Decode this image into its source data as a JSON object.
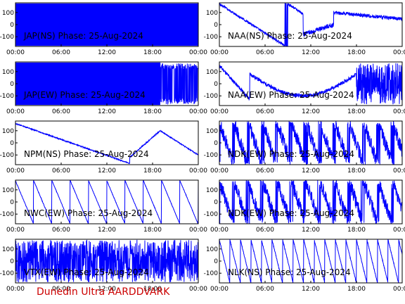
{
  "footer": {
    "text": "Dunedin Ultra AARDDVARK",
    "color": "#cc0000"
  },
  "colors": {
    "trace": "#0000ff",
    "axes": "#000000",
    "background": "#ffffff"
  },
  "chart_data": [
    {
      "type": "line",
      "title": "JAP(NS) Phase: 25-Aug-2024",
      "x_ticks": [
        "00:00",
        "06:00",
        "12:00",
        "18:00",
        "00:00"
      ],
      "y_ticks": [
        "100",
        "0",
        "-100"
      ],
      "xlim": [
        0,
        24
      ],
      "ylim": [
        -180,
        180
      ],
      "pattern": "saturated",
      "seed": 3
    },
    {
      "type": "line",
      "title": "NAA(NS) Phase: 25-Aug-2024",
      "x_ticks": [
        "00:00",
        "06:00",
        "12:00",
        "18:00",
        "00:00"
      ],
      "y_ticks": [
        "100",
        "0",
        "-100"
      ],
      "xlim": [
        0,
        24
      ],
      "ylim": [
        -180,
        180
      ],
      "pattern": "naa_ns",
      "seed": 5
    },
    {
      "type": "line",
      "title": "JAP(EW) Phase: 25-Aug-2024",
      "x_ticks": [
        "00:00",
        "06:00",
        "12:00",
        "18:00",
        "00:00"
      ],
      "y_ticks": [
        "100",
        "0",
        "-100"
      ],
      "xlim": [
        0,
        24
      ],
      "ylim": [
        -180,
        180
      ],
      "pattern": "saturated_tail",
      "seed": 7
    },
    {
      "type": "line",
      "title": "NAA(EW) Phase: 25-Aug-2024",
      "x_ticks": [
        "00:00",
        "06:00",
        "12:00",
        "18:00",
        "00:00"
      ],
      "y_ticks": [
        "100",
        "0",
        "-100"
      ],
      "xlim": [
        0,
        24
      ],
      "ylim": [
        -180,
        180
      ],
      "pattern": "naa_ew",
      "seed": 11
    },
    {
      "type": "line",
      "title": "NPM(NS) Phase: 25-Aug-2024",
      "x_ticks": [
        "00:00",
        "06:00",
        "12:00",
        "18:00",
        "00:00"
      ],
      "y_ticks": [
        "100",
        "0",
        "-100"
      ],
      "xlim": [
        0,
        24
      ],
      "ylim": [
        -180,
        180
      ],
      "pattern": "npm",
      "seed": 13
    },
    {
      "type": "line",
      "title": "NDK(EW) Phase: 25-Aug-2024",
      "x_ticks": [
        "00:00",
        "06:00",
        "12:00",
        "18:00",
        "00:00"
      ],
      "y_ticks": [
        "100",
        "0",
        "-100"
      ],
      "xlim": [
        0,
        24
      ],
      "ylim": [
        -180,
        180
      ],
      "pattern": "dense_ramp",
      "seed": 17
    },
    {
      "type": "line",
      "title": "NWC(EW) Phase: 25-Aug-2024",
      "x_ticks": [
        "00:00",
        "06:00",
        "12:00",
        "18:00",
        "00:00"
      ],
      "y_ticks": [
        "100",
        "0",
        "-100"
      ],
      "xlim": [
        0,
        24
      ],
      "ylim": [
        -180,
        180
      ],
      "pattern": "sawtooth",
      "seed": 19
    },
    {
      "type": "line",
      "title": "NDK(EW) Phase: 25-Aug-2024",
      "x_ticks": [
        "00:00",
        "06:00",
        "12:00",
        "18:00",
        "00:00"
      ],
      "y_ticks": [
        "100",
        "0",
        "-100"
      ],
      "xlim": [
        0,
        24
      ],
      "ylim": [
        -180,
        180
      ],
      "pattern": "dense_ramp",
      "seed": 23
    },
    {
      "type": "line",
      "title": "VTX(EW) Phase: 25-Aug-2024",
      "x_ticks": [
        "00:00",
        "06:00",
        "12:00",
        "18:00",
        "00:00"
      ],
      "y_ticks": [
        "100",
        "0",
        "-100"
      ],
      "xlim": [
        0,
        24
      ],
      "ylim": [
        -180,
        180
      ],
      "pattern": "noise",
      "seed": 29
    },
    {
      "type": "line",
      "title": "NLK(NS) Phase: 25-Aug-2024",
      "x_ticks": [
        "00:00",
        "06:00",
        "12:00",
        "18:00",
        "00:00"
      ],
      "y_ticks": [
        "100",
        "0",
        "-100"
      ],
      "xlim": [
        0,
        24
      ],
      "ylim": [
        -180,
        180
      ],
      "pattern": "sawtooth_fast",
      "seed": 31
    }
  ]
}
